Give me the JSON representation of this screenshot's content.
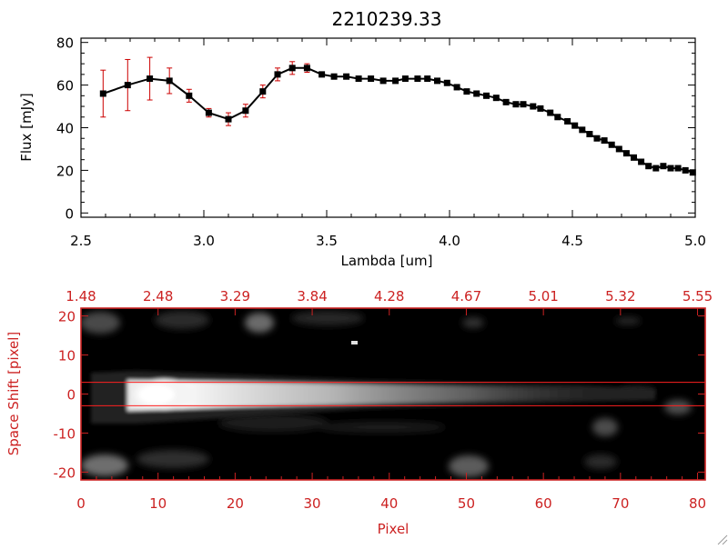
{
  "colors": {
    "spectrum_line": "#000000",
    "marker": "#000000",
    "error_bar": "#cc0000",
    "image_axes": "#cc2222",
    "aperture_lines": "#ff2020",
    "background": "#ffffff",
    "image_background": "#000000"
  },
  "chart_data": [
    {
      "type": "line",
      "title": "2210239.33",
      "xlabel": "Lambda [um]",
      "ylabel": "Flux [mJy]",
      "xlim": [
        2.5,
        5.0
      ],
      "ylim": [
        -2,
        82
      ],
      "xticks": [
        "2.5",
        "3.0",
        "3.5",
        "4.0",
        "4.5",
        "5.0"
      ],
      "yticks": [
        "0",
        "20",
        "40",
        "60",
        "80"
      ],
      "grid": false,
      "series": [
        {
          "x": [
            2.59,
            2.69,
            2.78,
            2.86,
            2.94,
            3.02,
            3.1,
            3.17,
            3.24,
            3.3,
            3.36,
            3.42,
            3.48,
            3.53,
            3.58,
            3.63,
            3.68,
            3.73,
            3.78,
            3.82,
            3.87,
            3.91,
            3.95,
            3.99,
            4.03,
            4.07,
            4.11,
            4.15,
            4.19,
            4.23,
            4.27,
            4.3,
            4.34,
            4.37,
            4.41,
            4.44,
            4.48,
            4.51,
            4.54,
            4.57,
            4.6,
            4.63,
            4.66,
            4.69,
            4.72,
            4.75,
            4.78,
            4.81,
            4.84,
            4.87,
            4.9,
            4.93,
            4.96,
            4.99
          ],
          "y": [
            56,
            60,
            63,
            62,
            55,
            47,
            44,
            48,
            57,
            65,
            68,
            68,
            65,
            64,
            64,
            63,
            63,
            62,
            62,
            63,
            63,
            63,
            62,
            61,
            59,
            57,
            56,
            55,
            54,
            52,
            51,
            51,
            50,
            49,
            47,
            45,
            43,
            41,
            39,
            37,
            35,
            34,
            32,
            30,
            28,
            26,
            24,
            22,
            21,
            22,
            21,
            21,
            20,
            19
          ],
          "yerr": [
            11,
            12,
            10,
            6,
            3,
            2,
            3,
            3,
            3,
            3,
            3,
            2,
            1,
            1,
            1,
            1,
            1,
            1,
            1,
            1,
            1,
            1,
            1,
            1,
            1,
            1,
            1,
            1,
            1,
            1,
            1,
            1,
            1,
            1,
            1,
            1,
            1,
            1,
            1,
            1,
            1,
            1,
            1,
            1,
            1,
            1,
            1,
            1,
            1,
            1,
            1,
            1,
            1,
            1
          ]
        }
      ]
    },
    {
      "type": "heatmap",
      "xlabel": "Pixel",
      "ylabel": "Space Shift [pixel]",
      "xlim": [
        0,
        81
      ],
      "ylim": [
        -22,
        22
      ],
      "xticks": [
        "0",
        "10",
        "20",
        "30",
        "40",
        "50",
        "60",
        "70",
        "80"
      ],
      "yticks": [
        "-20",
        "-10",
        "0",
        "10",
        "20"
      ],
      "top_axis_ticks": [
        "1.48",
        "2.48",
        "3.29",
        "3.84",
        "4.28",
        "4.67",
        "5.01",
        "5.32",
        "5.55"
      ],
      "aperture": [
        -3,
        3
      ]
    }
  ]
}
